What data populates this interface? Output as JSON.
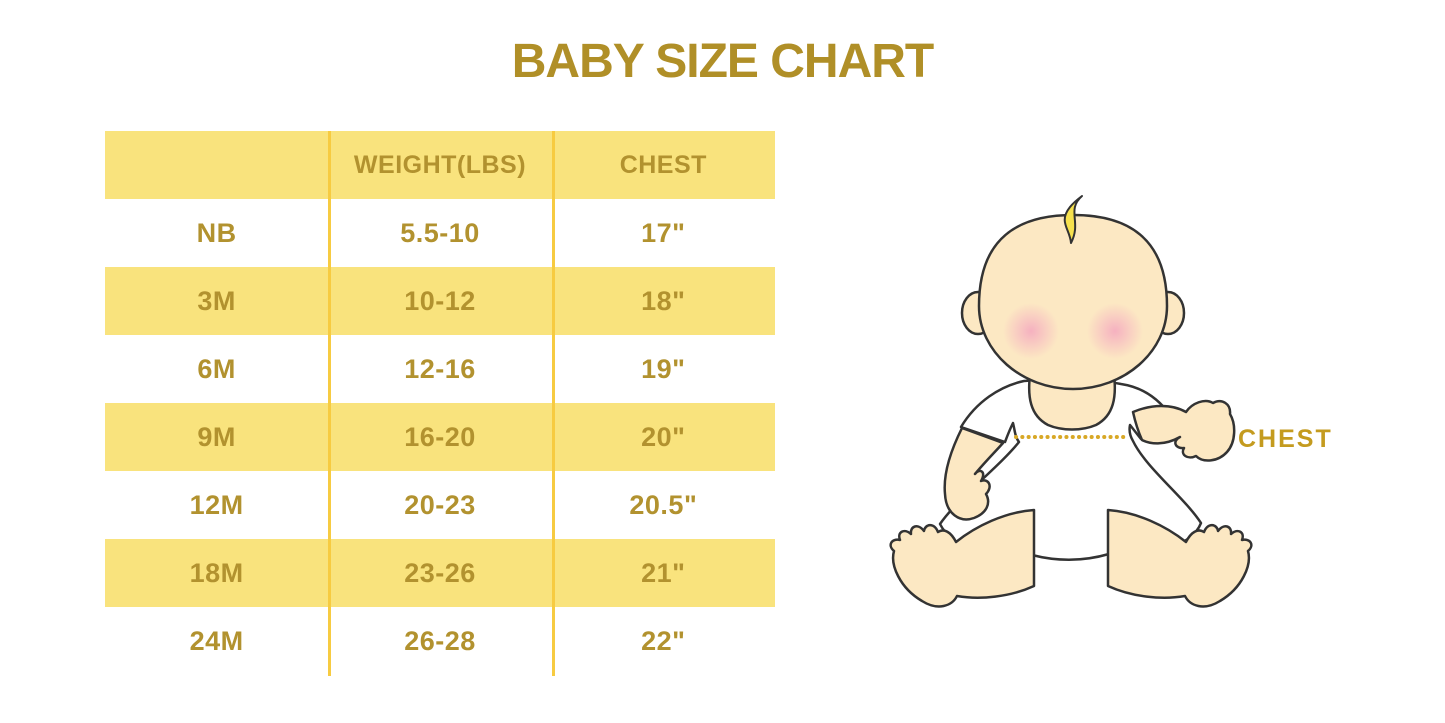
{
  "title": "BABY SIZE CHART",
  "chart_data": {
    "type": "table",
    "title": "BABY SIZE CHART",
    "columns": [
      "",
      "WEIGHT(LBS)",
      "CHEST"
    ],
    "rows": [
      [
        "NB",
        "5.5-10",
        "17\""
      ],
      [
        "3M",
        "10-12",
        "18\""
      ],
      [
        "6M",
        "12-16",
        "19\""
      ],
      [
        "9M",
        "16-20",
        "20\""
      ],
      [
        "12M",
        "20-23",
        "20.5\""
      ],
      [
        "18M",
        "23-26",
        "21\""
      ],
      [
        "24M",
        "26-28",
        "22\""
      ]
    ],
    "layout": {
      "row_striping": "header and alternating rows yellow, others white",
      "grid": "two vertical gold column dividers, equal thirds"
    }
  },
  "illustration": {
    "chest_label": "CHEST"
  },
  "colors": {
    "background": "#FFFFFF",
    "title_gold": "#B08F27",
    "table_text_gold": "#B2922F",
    "row_yellow": "#F9E37D",
    "divider_gold": "#F7CB41",
    "dotted_line_gold": "#D8A826",
    "chest_label_gold": "#C49B1F",
    "skin": "#FCE8C3",
    "outline": "#333333",
    "blush_pink": "#F5AEC0",
    "hair_yellow": "#F6E14E",
    "shirt_white": "#FFFFFF"
  }
}
